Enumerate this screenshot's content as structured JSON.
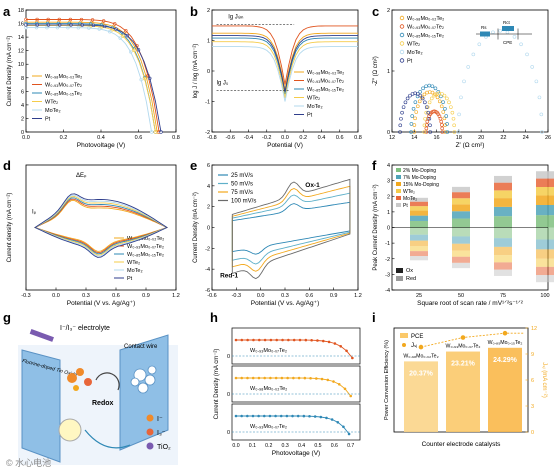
{
  "labels": {
    "a": "a",
    "b": "b",
    "c": "c",
    "d": "d",
    "e": "e",
    "f": "f",
    "g": "g",
    "h": "h",
    "i": "i"
  },
  "series_names": {
    "w98": "W₀.₉₈Mo₀.₀₂Te₂",
    "w93": "W₀.₉₃Mo₀.₀₇Te₂",
    "w85": "W₀.₈₅Mo₀.₁₅Te₂",
    "wte2": "WTe₂",
    "mote2": "MoTe₂",
    "pt": "Pt"
  },
  "colors": {
    "w98": "#f2a81d",
    "w93": "#e0541f",
    "w85": "#2e88b5",
    "wte2": "#f5cc4a",
    "mote2": "#b3d9ee",
    "pt": "#2f3e8c",
    "dpt": "#555555",
    "ox_dark": "#222222",
    "red_gray": "#9a9a9a"
  },
  "panel_a": {
    "xlabel": "Photovoltage (V)",
    "ylabel": "Current Density (mA cm⁻²)",
    "xticks": [
      "0.0",
      "0.2",
      "0.4",
      "0.6",
      "0.8"
    ],
    "yticks": [
      "0",
      "2",
      "4",
      "6",
      "8",
      "10",
      "12",
      "14",
      "16",
      "18"
    ],
    "chart_data": {
      "type": "line",
      "xlim": [
        0,
        0.8
      ],
      "ylim": [
        0,
        18
      ],
      "series": [
        {
          "key": "w98",
          "jsc": 16.2,
          "voc": 0.7
        },
        {
          "key": "w93",
          "jsc": 16.6,
          "voc": 0.71
        },
        {
          "key": "w85",
          "jsc": 16.0,
          "voc": 0.69
        },
        {
          "key": "wte2",
          "jsc": 15.7,
          "voc": 0.69
        },
        {
          "key": "mote2",
          "jsc": 15.4,
          "voc": 0.67
        },
        {
          "key": "pt",
          "jsc": 15.8,
          "voc": 0.72
        }
      ]
    }
  },
  "panel_b": {
    "xlabel": "Potential (V)",
    "ylabel": "log J / log (mA cm⁻²)",
    "xticks": [
      "-0.8",
      "-0.6",
      "-0.4",
      "-0.2",
      "0.0",
      "0.2",
      "0.4",
      "0.6",
      "0.8"
    ],
    "yticks": [
      "-2",
      "-1",
      "0",
      "1",
      "2"
    ],
    "ann_jlim": "lg Jₗᵢₘ",
    "ann_j0": "lg J₀",
    "chart_data": {
      "type": "line",
      "xlim": [
        -0.8,
        0.8
      ],
      "ylim": [
        -2.5,
        2.5
      ],
      "series": [
        {
          "key": "w98",
          "jlim": 1.55,
          "j0": -0.75
        },
        {
          "key": "w93",
          "jlim": 1.85,
          "j0": -0.55
        },
        {
          "key": "w85",
          "jlim": 1.35,
          "j0": -0.95
        },
        {
          "key": "wte2",
          "jlim": 1.2,
          "j0": -1.1
        },
        {
          "key": "mote2",
          "jlim": 1.0,
          "j0": -1.25
        },
        {
          "key": "pt",
          "jlim": 1.45,
          "j0": -0.85
        }
      ]
    }
  },
  "panel_c": {
    "xlabel": "Z′ (Ω cm²)",
    "ylabel": "-Z″ (Ω cm²)",
    "xticks": [
      "12",
      "14",
      "16",
      "18",
      "20",
      "22",
      "24",
      "26"
    ],
    "yticks": [
      "0",
      "1",
      "2"
    ],
    "circuit_labels": {
      "rs": "Rs",
      "rct": "Rct",
      "cpe": "CPE"
    },
    "chart_data": {
      "type": "scatter",
      "xlim": [
        11,
        26.5
      ],
      "ylim": [
        0,
        2.6
      ],
      "series": [
        {
          "key": "w98",
          "start": 13.2,
          "end": 16.3
        },
        {
          "key": "w93",
          "start": 14.4,
          "end": 16.0
        },
        {
          "key": "w85",
          "start": 12.9,
          "end": 16.5
        },
        {
          "key": "wte2",
          "start": 14.2,
          "end": 17.2
        },
        {
          "key": "mote2",
          "start": 17.6,
          "end": 25.9
        },
        {
          "key": "pt",
          "start": 11.8,
          "end": 14.8
        }
      ]
    }
  },
  "panel_d": {
    "xlabel": "Potential (V vs. Ag/Ag⁺)",
    "ylabel": "Current density (mA cm⁻²)",
    "xticks": [
      "-0.3",
      "0.0",
      "0.3",
      "0.6",
      "0.9",
      "1.2"
    ],
    "ann_dep": "ΔEₚ",
    "ann_ip": "Iₚ",
    "chart_data": {
      "type": "line",
      "xlim": [
        -0.45,
        1.2
      ]
    }
  },
  "panel_e": {
    "xlabel": "Potential (V vs. Ag/Ag⁺)",
    "ylabel": "Current Density (mA cm⁻²)",
    "xticks": [
      "-0.6",
      "-0.3",
      "0.0",
      "0.3",
      "0.6",
      "0.9",
      "1.2"
    ],
    "yticks": [
      "-6",
      "-4",
      "-2",
      "0",
      "2",
      "4",
      "6"
    ],
    "ann_ox": "Ox-1",
    "ann_red": "Red-1",
    "chart_data": {
      "type": "line",
      "xlim": [
        -0.6,
        1.2
      ],
      "ylim": [
        -6,
        6
      ],
      "series": [
        {
          "name": "25 mV/s",
          "color": "#2e88b5",
          "scale": 0.55
        },
        {
          "name": "50 mV/s",
          "color": "#5fb0c9",
          "scale": 0.75
        },
        {
          "name": "75 mV/s",
          "color": "#f2a81d",
          "scale": 0.9
        },
        {
          "name": "100 mV/s",
          "color": "#6b6b6b",
          "scale": 1.05
        }
      ]
    }
  },
  "panel_f": {
    "xlabel": "Square root of scan rate / mV¹ᐟ²s⁻¹ᐟ²",
    "ylabel": "Peak Current Density (mA cm⁻²)",
    "xticks": [
      "25",
      "50",
      "75",
      "100"
    ],
    "yticks": [
      "-4",
      "-3",
      "-2",
      "-1",
      "0",
      "1",
      "2",
      "3",
      "4"
    ],
    "legend": [
      "2% Mo-Doping",
      "7% Mo-Doping",
      "15% Mo-Doping",
      "WTe₂",
      "MoTe₂",
      "Pt"
    ],
    "legend2": [
      "Ox",
      "Red"
    ],
    "chart_data": {
      "type": "bar",
      "categories": [
        "25",
        "50",
        "75",
        "100"
      ],
      "ox_totals": [
        1.9,
        2.6,
        3.3,
        3.6
      ],
      "red_totals": [
        -2.1,
        -2.6,
        -3.1,
        -3.5
      ]
    }
  },
  "panel_g": {
    "electrolyte": "I⁻/I₃⁻ electrolyte",
    "contact_wire": "Contact wire",
    "fto": "Fluorine-doped Tin Oxide",
    "redox": "Redox",
    "legend_i": "I⁻",
    "legend_i3": "I₃⁻",
    "legend_tio2": "TiO₂"
  },
  "panel_h": {
    "xlabel": "Photovoltage (V)",
    "ylabel": "Current Density (mA cm⁻²)",
    "xticks": [
      "0.0",
      "0.1",
      "0.2",
      "0.3",
      "0.4",
      "0.5",
      "0.6",
      "0.7"
    ],
    "ytick": "0",
    "rows": [
      {
        "key": "w93",
        "name": "W₀.₉₃Mo₀.₀₇Te₂",
        "voc": 0.71
      },
      {
        "key": "w98",
        "name": "W₀.₉₈Mo₀.₀₂Te₂",
        "voc": 0.7
      },
      {
        "key": "w93b",
        "name": "W₀.₉₃Mo₀.₀₇Te₂",
        "voc": 0.69
      }
    ]
  },
  "panel_i": {
    "xlabel": "Counter electrode catalysts",
    "ylabel_left": "Power Conversion Efficiency (%)",
    "ylabel_right": "Jₛⱼ (mA cm⁻²)",
    "legend_pce": "PCE",
    "legend_jsc": "Jₛⱼ",
    "yticks_right": [
      "0",
      "3",
      "6",
      "9",
      "12"
    ],
    "chart_data": {
      "type": "bar",
      "categories": [
        "W₀.₉₈Mo₀.₀₂Te₂",
        "W₀.₉₃Mo₀.₀₇Te₂",
        "W₀.₈₅Mo₀.₁₅Te₂"
      ],
      "pce_labels": [
        "20.37%",
        "23.21%",
        "24.29%"
      ],
      "pce": [
        20.37,
        23.21,
        24.29
      ],
      "jsc": [
        9.8,
        10.9,
        11.4
      ]
    }
  },
  "watermark": "© 水心电池"
}
